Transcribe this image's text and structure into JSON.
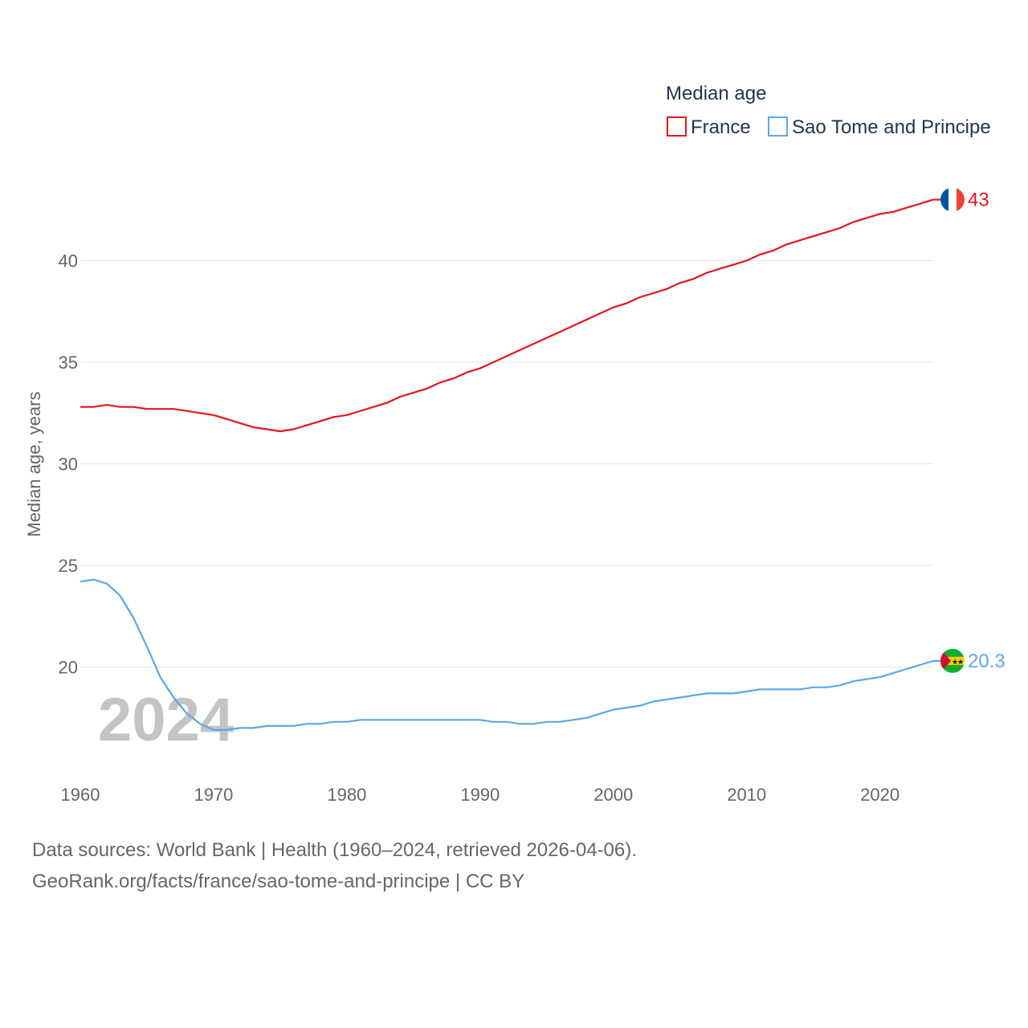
{
  "chart_data": {
    "type": "line",
    "title": "",
    "xlabel": "",
    "ylabel": "Median age, years",
    "xlim": [
      1960,
      2024
    ],
    "ylim": [
      15,
      45
    ],
    "xticks": [
      1960,
      1970,
      1980,
      1990,
      2000,
      2010,
      2020
    ],
    "yticks": [
      20,
      25,
      30,
      35,
      40
    ],
    "grid": true,
    "watermark_year": "2024",
    "legend": {
      "title": "Median age",
      "placement": "top-right",
      "entries": [
        "France",
        "Sao Tome and Principe"
      ]
    },
    "x": [
      1960,
      1961,
      1962,
      1963,
      1964,
      1965,
      1966,
      1967,
      1968,
      1969,
      1970,
      1971,
      1972,
      1973,
      1974,
      1975,
      1976,
      1977,
      1978,
      1979,
      1980,
      1981,
      1982,
      1983,
      1984,
      1985,
      1986,
      1987,
      1988,
      1989,
      1990,
      1991,
      1992,
      1993,
      1994,
      1995,
      1996,
      1997,
      1998,
      1999,
      2000,
      2001,
      2002,
      2003,
      2004,
      2005,
      2006,
      2007,
      2008,
      2009,
      2010,
      2011,
      2012,
      2013,
      2014,
      2015,
      2016,
      2017,
      2018,
      2019,
      2020,
      2021,
      2022,
      2023,
      2024
    ],
    "series": [
      {
        "name": "France",
        "color": "#e8141b",
        "end_label": "43",
        "values": [
          32.8,
          32.8,
          32.9,
          32.8,
          32.8,
          32.7,
          32.7,
          32.7,
          32.6,
          32.5,
          32.4,
          32.2,
          32.0,
          31.8,
          31.7,
          31.6,
          31.7,
          31.9,
          32.1,
          32.3,
          32.4,
          32.6,
          32.8,
          33.0,
          33.3,
          33.5,
          33.7,
          34.0,
          34.2,
          34.5,
          34.7,
          35.0,
          35.3,
          35.6,
          35.9,
          36.2,
          36.5,
          36.8,
          37.1,
          37.4,
          37.7,
          37.9,
          38.2,
          38.4,
          38.6,
          38.9,
          39.1,
          39.4,
          39.6,
          39.8,
          40.0,
          40.3,
          40.5,
          40.8,
          41.0,
          41.2,
          41.4,
          41.6,
          41.9,
          42.1,
          42.3,
          42.4,
          42.6,
          42.8,
          43.0
        ]
      },
      {
        "name": "Sao Tome and Principe",
        "color": "#5aa8e6",
        "end_label": "20.3",
        "values": [
          24.2,
          24.3,
          24.1,
          23.5,
          22.4,
          21.0,
          19.5,
          18.5,
          17.7,
          17.2,
          16.9,
          16.9,
          17.0,
          17.0,
          17.1,
          17.1,
          17.1,
          17.2,
          17.2,
          17.3,
          17.3,
          17.4,
          17.4,
          17.4,
          17.4,
          17.4,
          17.4,
          17.4,
          17.4,
          17.4,
          17.4,
          17.3,
          17.3,
          17.2,
          17.2,
          17.3,
          17.3,
          17.4,
          17.5,
          17.7,
          17.9,
          18.0,
          18.1,
          18.3,
          18.4,
          18.5,
          18.6,
          18.7,
          18.7,
          18.7,
          18.8,
          18.9,
          18.9,
          18.9,
          18.9,
          19.0,
          19.0,
          19.1,
          19.3,
          19.4,
          19.5,
          19.7,
          19.9,
          20.1,
          20.3
        ]
      }
    ]
  },
  "source": {
    "line1": "Data sources: World Bank | Health (1960–2024, retrieved 2026-04-06).",
    "line2": "GeoRank.org/facts/france/sao-tome-and-principe | CC BY"
  }
}
